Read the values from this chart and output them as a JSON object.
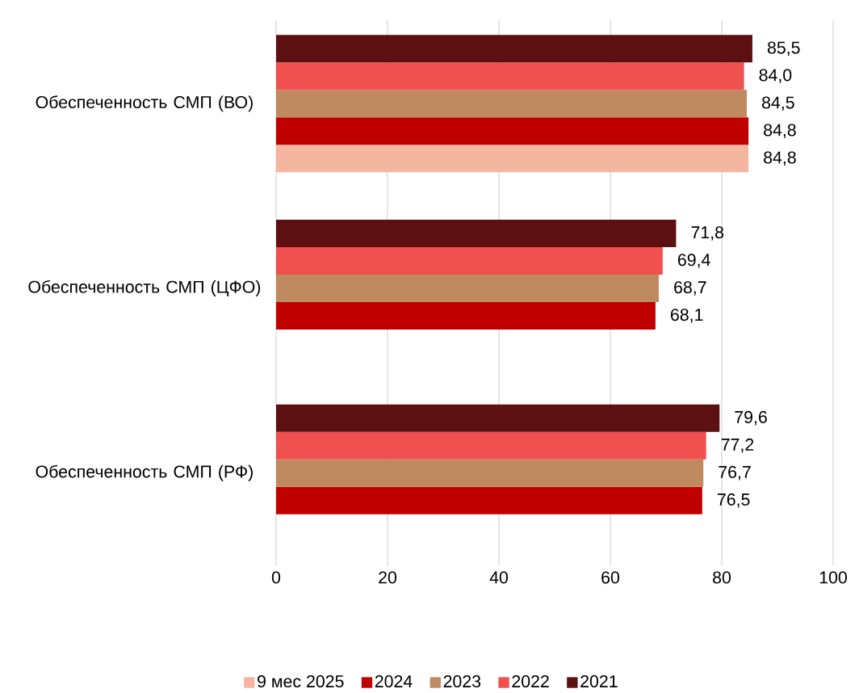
{
  "chart_data": {
    "type": "bar",
    "orientation": "horizontal",
    "categories": [
      "Обеспеченность СМП (ВО)",
      "Обеспеченность СМП (ЦФО)",
      "Обеспеченность СМП (РФ)"
    ],
    "series": [
      {
        "name": "9 мес 2025",
        "color": "#f4b6a0",
        "values": [
          84.8,
          null,
          null
        ],
        "value_labels": [
          "84,8",
          null,
          null
        ]
      },
      {
        "name": "2024",
        "color": "#c00000",
        "values": [
          84.8,
          68.1,
          76.5
        ],
        "value_labels": [
          "84,8",
          "68,1",
          "76,5"
        ]
      },
      {
        "name": "2023",
        "color": "#c08a60",
        "values": [
          84.5,
          68.7,
          76.7
        ],
        "value_labels": [
          "84,5",
          "68,7",
          "76,7"
        ]
      },
      {
        "name": "2022",
        "color": "#f05050",
        "values": [
          84.0,
          69.4,
          77.2
        ],
        "value_labels": [
          "84,0",
          "69,4",
          "77,2"
        ]
      },
      {
        "name": "2021",
        "color": "#5c1012",
        "values": [
          85.5,
          71.8,
          79.6
        ],
        "value_labels": [
          "85,5",
          "71,8",
          "79,6"
        ]
      }
    ],
    "xlim": [
      0,
      100
    ],
    "xticks": [
      0,
      20,
      40,
      60,
      80,
      100
    ],
    "grid": "x",
    "legend": "bottom"
  }
}
